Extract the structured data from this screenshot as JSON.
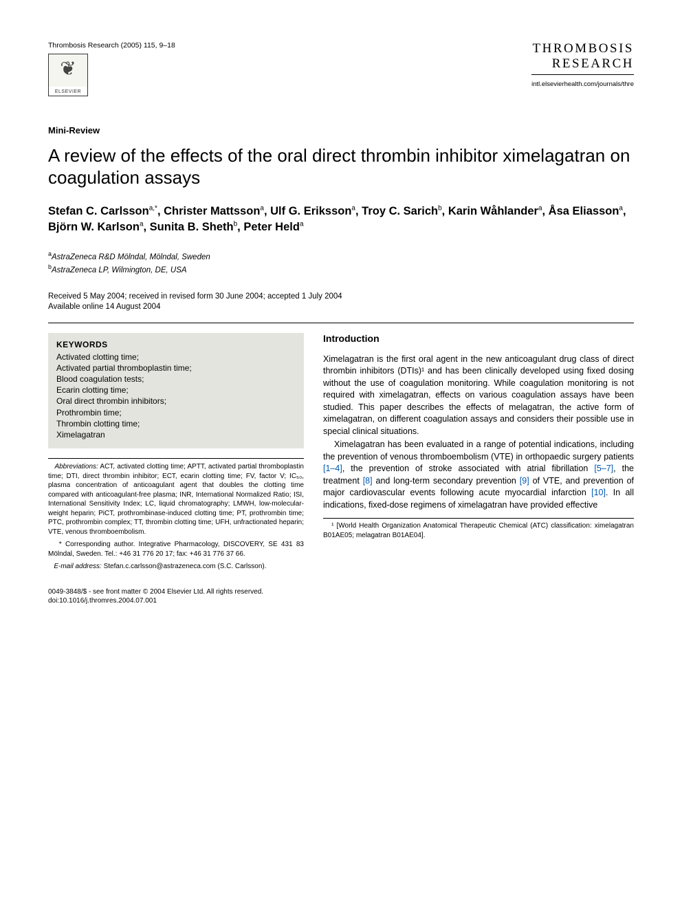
{
  "header": {
    "citation": "Thrombosis Research (2005) 115, 9–18",
    "publisher_name": "ELSEVIER",
    "journal_name_line1": "THROMBOSIS",
    "journal_name_line2": "RESEARCH",
    "journal_url": "intl.elsevierhealth.com/journals/thre"
  },
  "article": {
    "type": "Mini-Review",
    "title": "A review of the effects of the oral direct thrombin inhibitor ximelagatran on coagulation assays",
    "authors_html": "Stefan C. Carlsson<sup>a,*</sup>, Christer Mattsson<sup>a</sup>, Ulf G. Eriksson<sup>a</sup>, Troy C. Sarich<sup>b</sup>, Karin Wåhlander<sup>a</sup>, Åsa Eliasson<sup>a</sup>, Björn W. Karlson<sup>a</sup>, Sunita B. Sheth<sup>b</sup>, Peter Held<sup>a</sup>",
    "affiliations": [
      {
        "marker": "a",
        "text": "AstraZeneca R&D Mölndal, Mölndal, Sweden"
      },
      {
        "marker": "b",
        "text": "AstraZeneca LP, Wilmington, DE, USA"
      }
    ],
    "dates_line1": "Received 5 May 2004; received in revised form 30 June 2004; accepted 1 July 2004",
    "dates_line2": "Available online 14 August 2004"
  },
  "keywords": {
    "title": "KEYWORDS",
    "items": [
      "Activated clotting time;",
      "Activated partial thromboplastin time;",
      "Blood coagulation tests;",
      "Ecarin clotting time;",
      "Oral direct thrombin inhibitors;",
      "Prothrombin time;",
      "Thrombin clotting time;",
      "Ximelagatran"
    ]
  },
  "abbreviations": {
    "label": "Abbreviations:",
    "text": " ACT, activated clotting time; APTT, activated partial thromboplastin time; DTI, direct thrombin inhibitor; ECT, ecarin clotting time; FV, factor V; IC₅₀, plasma concentration of anticoagulant agent that doubles the clotting time compared with anticoagulant-free plasma; INR, International Normalized Ratio; ISI, International Sensitivity Index; LC, liquid chromatography; LMWH, low-molecular-weight heparin; PiCT, prothrombinase-induced clotting time; PT, prothrombin time; PTC, prothrombin complex; TT, thrombin clotting time; UFH, unfractionated heparin; VTE, venous thromboembolism."
  },
  "corresponding": "* Corresponding author. Integrative Pharmacology, DISCOVERY, SE 431 83 Mölndal, Sweden. Tel.: +46 31 776 20 17; fax: +46 31 776 37 66.",
  "email": {
    "label": "E-mail address:",
    "text": " Stefan.c.carlsson@astrazeneca.com (S.C. Carlsson)."
  },
  "intro": {
    "heading": "Introduction",
    "p1": "Ximelagatran is the first oral agent in the new anticoagulant drug class of direct thrombin inhibitors (DTIs)¹ and has been clinically developed using fixed dosing without the use of coagulation monitoring. While coagulation monitoring is not required with ximelagatran, effects on various coagulation assays have been studied. This paper describes the effects of melagatran, the active form of ximelagatran, on different coagulation assays and considers their possible use in special clinical situations.",
    "p2_a": "Ximelagatran has been evaluated in a range of potential indications, including the prevention of venous thromboembolism (VTE) in orthopaedic surgery patients ",
    "p2_ref1": "[1–4]",
    "p2_b": ", the prevention of stroke associated with atrial fibrillation ",
    "p2_ref2": "[5–7]",
    "p2_c": ", the treatment ",
    "p2_ref3": "[8]",
    "p2_d": " and long-term secondary prevention ",
    "p2_ref4": "[9]",
    "p2_e": " of VTE, and prevention of major cardiovascular events following acute myocardial infarction ",
    "p2_ref5": "[10]",
    "p2_f": ". In all indications, fixed-dose regimens of ximelagatran have provided effective"
  },
  "footnote1": "¹ [World Health Organization Anatomical Therapeutic Chemical (ATC) classification: ximelagatran B01AE05; melagatran B01AE04].",
  "footer": {
    "line1": "0049-3848/$ - see front matter © 2004 Elsevier Ltd. All rights reserved.",
    "line2": "doi:10.1016/j.thromres.2004.07.001"
  },
  "colors": {
    "text": "#000000",
    "background": "#ffffff",
    "keywords_bg": "#e4e4de",
    "link": "#0058b0"
  }
}
